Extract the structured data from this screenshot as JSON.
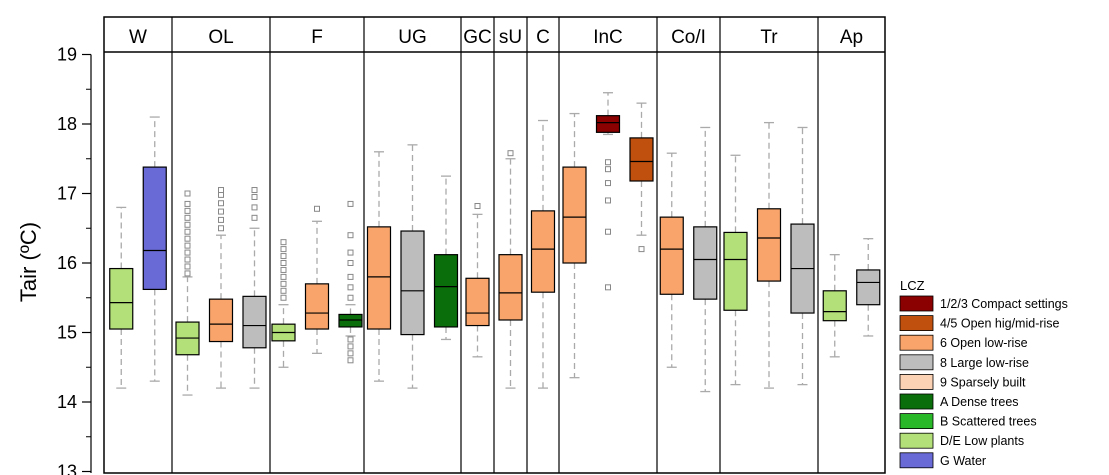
{
  "chart_data": {
    "type": "box",
    "title": "",
    "xlabel": "",
    "ylabel": "Tair (ºC)",
    "ylim": [
      13,
      19
    ],
    "yticks": [
      "13",
      "14",
      "15",
      "16",
      "17",
      "18",
      "19"
    ],
    "grid": false,
    "legend_title": "LCZ",
    "legend_position": "right",
    "legend": [
      {
        "label": "1/2/3 Compact settings",
        "color": "#8b0000"
      },
      {
        "label": "4/5 Open hig/mid-rise",
        "color": "#c0500e"
      },
      {
        "label": "6 Open low-rise",
        "color": "#f9a46a"
      },
      {
        "label": "8 Large low-rise",
        "color": "#bdbdbd"
      },
      {
        "label": "9 Sparsely built",
        "color": "#fcd2b4"
      },
      {
        "label": "A Dense trees",
        "color": "#0a6e0a"
      },
      {
        "label": "B Scattered trees",
        "color": "#28b828"
      },
      {
        "label": "D/E Low plants",
        "color": "#b4e07a"
      },
      {
        "label": "G Water",
        "color": "#6a6ad6"
      }
    ],
    "categories": [
      {
        "label": "W",
        "span": 2
      },
      {
        "label": "OL",
        "span": 3
      },
      {
        "label": "F",
        "span": 3
      },
      {
        "label": "UG",
        "span": 3
      },
      {
        "label": "GC",
        "span": 1
      },
      {
        "label": "sU",
        "span": 1
      },
      {
        "label": "C",
        "span": 1
      },
      {
        "label": "InC",
        "span": 3
      },
      {
        "label": "Co/I",
        "span": 2
      },
      {
        "label": "Tr",
        "span": 3
      },
      {
        "label": "Ap",
        "span": 2
      }
    ],
    "boxes": [
      {
        "category": "W",
        "lcz": "D/E Low plants",
        "whisker_low": 14.2,
        "q1": 15.05,
        "median": 15.43,
        "q3": 15.92,
        "whisker_high": 16.8,
        "outliers": []
      },
      {
        "category": "W",
        "lcz": "G Water",
        "whisker_low": 14.3,
        "q1": 15.62,
        "median": 16.18,
        "q3": 17.38,
        "whisker_high": 18.1,
        "outliers": []
      },
      {
        "category": "OL",
        "lcz": "D/E Low plants",
        "whisker_low": 14.1,
        "q1": 14.68,
        "median": 14.92,
        "q3": 15.15,
        "whisker_high": 15.8,
        "outliers": [
          15.85,
          15.95,
          16.05,
          16.15,
          16.25,
          16.35,
          16.45,
          16.55,
          16.65,
          16.75,
          16.85,
          17.0
        ]
      },
      {
        "category": "OL",
        "lcz": "6 Open low-rise",
        "whisker_low": 14.2,
        "q1": 14.87,
        "median": 15.12,
        "q3": 15.48,
        "whisker_high": 16.4,
        "outliers": [
          16.5,
          16.62,
          16.74,
          16.86,
          16.98,
          17.05
        ]
      },
      {
        "category": "OL",
        "lcz": "8 Large low-rise",
        "whisker_low": 14.2,
        "q1": 14.78,
        "median": 15.1,
        "q3": 15.52,
        "whisker_high": 16.5,
        "outliers": [
          16.65,
          16.8,
          16.95,
          17.05
        ]
      },
      {
        "category": "F",
        "lcz": "D/E Low plants",
        "whisker_low": 14.5,
        "q1": 14.88,
        "median": 15.0,
        "q3": 15.12,
        "whisker_high": 15.4,
        "outliers": [
          15.5,
          15.6,
          15.7,
          15.8,
          15.9,
          16.0,
          16.1,
          16.2,
          16.3
        ]
      },
      {
        "category": "F",
        "lcz": "6 Open low-rise",
        "whisker_low": 14.7,
        "q1": 15.05,
        "median": 15.28,
        "q3": 15.7,
        "whisker_high": 16.6,
        "outliers": [
          16.78
        ]
      },
      {
        "category": "F",
        "lcz": "A Dense trees",
        "whisker_low": 14.95,
        "q1": 15.08,
        "median": 15.18,
        "q3": 15.26,
        "whisker_high": 15.4,
        "outliers": [
          14.6,
          14.7,
          14.8,
          14.9,
          15.5,
          15.65,
          15.8,
          16.0,
          16.15,
          16.4,
          16.85
        ]
      },
      {
        "category": "UG",
        "lcz": "6 Open low-rise",
        "whisker_low": 14.3,
        "q1": 15.05,
        "median": 15.8,
        "q3": 16.52,
        "whisker_high": 17.6,
        "outliers": []
      },
      {
        "category": "UG",
        "lcz": "8 Large low-rise",
        "whisker_low": 14.2,
        "q1": 14.97,
        "median": 15.6,
        "q3": 16.46,
        "whisker_high": 17.7,
        "outliers": []
      },
      {
        "category": "UG",
        "lcz": "A Dense trees",
        "whisker_low": 14.9,
        "q1": 15.08,
        "median": 15.66,
        "q3": 16.12,
        "whisker_high": 17.25,
        "outliers": []
      },
      {
        "category": "GC",
        "lcz": "6 Open low-rise",
        "whisker_low": 14.65,
        "q1": 15.1,
        "median": 15.28,
        "q3": 15.78,
        "whisker_high": 16.7,
        "outliers": [
          16.82
        ]
      },
      {
        "category": "sU",
        "lcz": "6 Open low-rise",
        "whisker_low": 14.2,
        "q1": 15.18,
        "median": 15.57,
        "q3": 16.12,
        "whisker_high": 17.5,
        "outliers": [
          17.58
        ]
      },
      {
        "category": "C",
        "lcz": "6 Open low-rise",
        "whisker_low": 14.2,
        "q1": 15.58,
        "median": 16.2,
        "q3": 16.75,
        "whisker_high": 18.05,
        "outliers": []
      },
      {
        "category": "InC",
        "lcz": "6 Open low-rise",
        "whisker_low": 14.35,
        "q1": 16.0,
        "median": 16.66,
        "q3": 17.38,
        "whisker_high": 18.15,
        "outliers": []
      },
      {
        "category": "InC",
        "lcz": "1/2/3 Compact settings",
        "whisker_low": 17.85,
        "q1": 17.88,
        "median": 18.02,
        "q3": 18.12,
        "whisker_high": 18.45,
        "outliers": [
          15.65,
          16.45,
          16.9,
          17.15,
          17.35,
          17.45
        ]
      },
      {
        "category": "InC",
        "lcz": "4/5 Open hig/mid-rise",
        "whisker_low": 16.4,
        "q1": 17.18,
        "median": 17.46,
        "q3": 17.8,
        "whisker_high": 18.3,
        "outliers": [
          16.2
        ]
      },
      {
        "category": "Co/I",
        "lcz": "6 Open low-rise",
        "whisker_low": 14.5,
        "q1": 15.55,
        "median": 16.2,
        "q3": 16.66,
        "whisker_high": 17.58,
        "outliers": []
      },
      {
        "category": "Co/I",
        "lcz": "8 Large low-rise",
        "whisker_low": 14.15,
        "q1": 15.48,
        "median": 16.05,
        "q3": 16.52,
        "whisker_high": 17.95,
        "outliers": []
      },
      {
        "category": "Tr",
        "lcz": "D/E Low plants",
        "whisker_low": 14.25,
        "q1": 15.32,
        "median": 16.05,
        "q3": 16.44,
        "whisker_high": 17.55,
        "outliers": []
      },
      {
        "category": "Tr",
        "lcz": "6 Open low-rise",
        "whisker_low": 14.2,
        "q1": 15.74,
        "median": 16.36,
        "q3": 16.78,
        "whisker_high": 18.02,
        "outliers": []
      },
      {
        "category": "Tr",
        "lcz": "8 Large low-rise",
        "whisker_low": 14.25,
        "q1": 15.28,
        "median": 15.92,
        "q3": 16.56,
        "whisker_high": 17.95,
        "outliers": []
      },
      {
        "category": "Ap",
        "lcz": "D/E Low plants",
        "whisker_low": 14.65,
        "q1": 15.17,
        "median": 15.3,
        "q3": 15.6,
        "whisker_high": 16.12,
        "outliers": []
      },
      {
        "category": "Ap",
        "lcz": "8 Large low-rise",
        "whisker_low": 14.95,
        "q1": 15.4,
        "median": 15.72,
        "q3": 15.9,
        "whisker_high": 16.35,
        "outliers": []
      }
    ]
  }
}
